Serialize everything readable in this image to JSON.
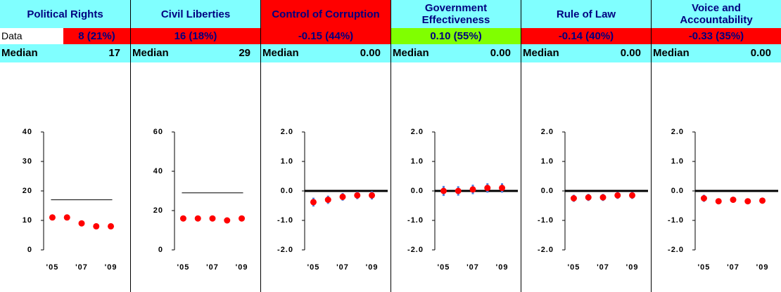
{
  "chart_data": [
    {
      "type": "scatter",
      "title": "Political Rights",
      "header_color": "#80ffff",
      "data_label": "Data",
      "score": "8 (21%)",
      "score_color": "#ff0000",
      "median_label": "Median",
      "median": 17,
      "median_style": "thin",
      "x": [
        2005,
        2006,
        2007,
        2008,
        2009
      ],
      "values": [
        11,
        11,
        9,
        8,
        8
      ],
      "color": "#ff0000",
      "xlim": [
        2004.4,
        2009.6
      ],
      "xticks": [
        {
          "value": 2005,
          "label": "'05"
        },
        {
          "value": 2007,
          "label": "'07"
        },
        {
          "value": 2009,
          "label": "'09"
        }
      ],
      "ylim": [
        0,
        40
      ],
      "yticks": [
        0,
        10,
        20,
        30,
        40
      ]
    },
    {
      "type": "scatter",
      "title": "Civil Liberties",
      "header_color": "#80ffff",
      "score": "16 (18%)",
      "score_color": "#ff0000",
      "median_label": "Median",
      "median": 29,
      "median_style": "thin",
      "x": [
        2005,
        2006,
        2007,
        2008,
        2009
      ],
      "values": [
        16,
        16,
        16,
        15,
        16
      ],
      "color": "#ff0000",
      "xlim": [
        2004.4,
        2009.6
      ],
      "xticks": [
        {
          "value": 2005,
          "label": "'05"
        },
        {
          "value": 2007,
          "label": "'07"
        },
        {
          "value": 2009,
          "label": "'09"
        }
      ],
      "ylim": [
        0,
        60
      ],
      "yticks": [
        0,
        20,
        40,
        60
      ]
    },
    {
      "type": "errorbar",
      "title": "Control of Corruption",
      "header_color": "#ff0000",
      "score": "-0.15 (44%)",
      "score_color": "#ff0000",
      "median_label": "Median",
      "median": {
        "value": 0,
        "label": "0.00"
      },
      "median_style": "thick",
      "x": [
        2005,
        2006,
        2007,
        2008,
        2009
      ],
      "values": [
        -0.38,
        -0.3,
        -0.2,
        -0.15,
        -0.15
      ],
      "errors": [
        0.15,
        0.14,
        0.13,
        0.13,
        0.14
      ],
      "color": "#ff0000",
      "error_color": "#4a7fe0",
      "xlim": [
        2004.4,
        2009.6
      ],
      "xticks": [
        {
          "value": 2005,
          "label": "'05"
        },
        {
          "value": 2007,
          "label": "'07"
        },
        {
          "value": 2009,
          "label": "'09"
        }
      ],
      "ylim": [
        -2,
        2
      ],
      "yticks": [
        {
          "value": -2,
          "label": "-2.0"
        },
        {
          "value": -1,
          "label": "-1.0"
        },
        {
          "value": 0,
          "label": "0.0"
        },
        {
          "value": 1,
          "label": "1.0"
        },
        {
          "value": 2,
          "label": "2.0"
        }
      ]
    },
    {
      "type": "errorbar",
      "title": "Government Effectiveness",
      "header_color": "#80ffff",
      "score": "0.10 (55%)",
      "score_color": "#80ff00",
      "median_label": "Median",
      "median": {
        "value": 0,
        "label": "0.00"
      },
      "median_style": "thick",
      "x": [
        2005,
        2006,
        2007,
        2008,
        2009
      ],
      "values": [
        0,
        0,
        0.05,
        0.1,
        0.1
      ],
      "errors": [
        0.17,
        0.16,
        0.16,
        0.16,
        0.16
      ],
      "color": "#ff0000",
      "error_color": "#4a7fe0",
      "xlim": [
        2004.4,
        2009.6
      ],
      "xticks": [
        {
          "value": 2005,
          "label": "'05"
        },
        {
          "value": 2007,
          "label": "'07"
        },
        {
          "value": 2009,
          "label": "'09"
        }
      ],
      "ylim": [
        -2,
        2
      ],
      "yticks": [
        {
          "value": -2,
          "label": "-2.0"
        },
        {
          "value": -1,
          "label": "-1.0"
        },
        {
          "value": 0,
          "label": "0.0"
        },
        {
          "value": 1,
          "label": "1.0"
        },
        {
          "value": 2,
          "label": "2.0"
        }
      ]
    },
    {
      "type": "errorbar",
      "title": "Rule of Law",
      "header_color": "#80ffff",
      "score": "-0.14 (40%)",
      "score_color": "#ff0000",
      "median_label": "Median",
      "median": {
        "value": 0,
        "label": "0.00"
      },
      "median_style": "thick",
      "x": [
        2005,
        2006,
        2007,
        2008,
        2009
      ],
      "values": [
        -0.25,
        -0.22,
        -0.22,
        -0.15,
        -0.15
      ],
      "errors": [
        0.12,
        0.12,
        0.12,
        0.12,
        0.12
      ],
      "color": "#ff0000",
      "error_color": "#4a7fe0",
      "xlim": [
        2004.4,
        2009.6
      ],
      "xticks": [
        {
          "value": 2005,
          "label": "'05"
        },
        {
          "value": 2007,
          "label": "'07"
        },
        {
          "value": 2009,
          "label": "'09"
        }
      ],
      "ylim": [
        -2,
        2
      ],
      "yticks": [
        {
          "value": -2,
          "label": "-2.0"
        },
        {
          "value": -1,
          "label": "-1.0"
        },
        {
          "value": 0,
          "label": "0.0"
        },
        {
          "value": 1,
          "label": "1.0"
        },
        {
          "value": 2,
          "label": "2.0"
        }
      ]
    },
    {
      "type": "errorbar",
      "title": "Voice and Accountability",
      "header_color": "#80ffff",
      "score": "-0.33 (35%)",
      "score_color": "#ff0000",
      "median_label": "Median",
      "median": {
        "value": 0,
        "label": "0.00"
      },
      "median_style": "thick",
      "x": [
        2005,
        2006,
        2007,
        2008,
        2009
      ],
      "values": [
        -0.25,
        -0.35,
        -0.3,
        -0.35,
        -0.33
      ],
      "errors": [
        0.12,
        0.1,
        0.1,
        0.1,
        0.1
      ],
      "color": "#ff0000",
      "error_color": "#4a7fe0",
      "xlim": [
        2004.4,
        2009.6
      ],
      "xticks": [
        {
          "value": 2005,
          "label": "'05"
        },
        {
          "value": 2007,
          "label": "'07"
        },
        {
          "value": 2009,
          "label": "'09"
        }
      ],
      "ylim": [
        -2,
        2
      ],
      "yticks": [
        {
          "value": -2,
          "label": "-2.0"
        },
        {
          "value": -1,
          "label": "-1.0"
        },
        {
          "value": 0,
          "label": "0.0"
        },
        {
          "value": 1,
          "label": "1.0"
        },
        {
          "value": 2,
          "label": "2.0"
        }
      ]
    }
  ]
}
